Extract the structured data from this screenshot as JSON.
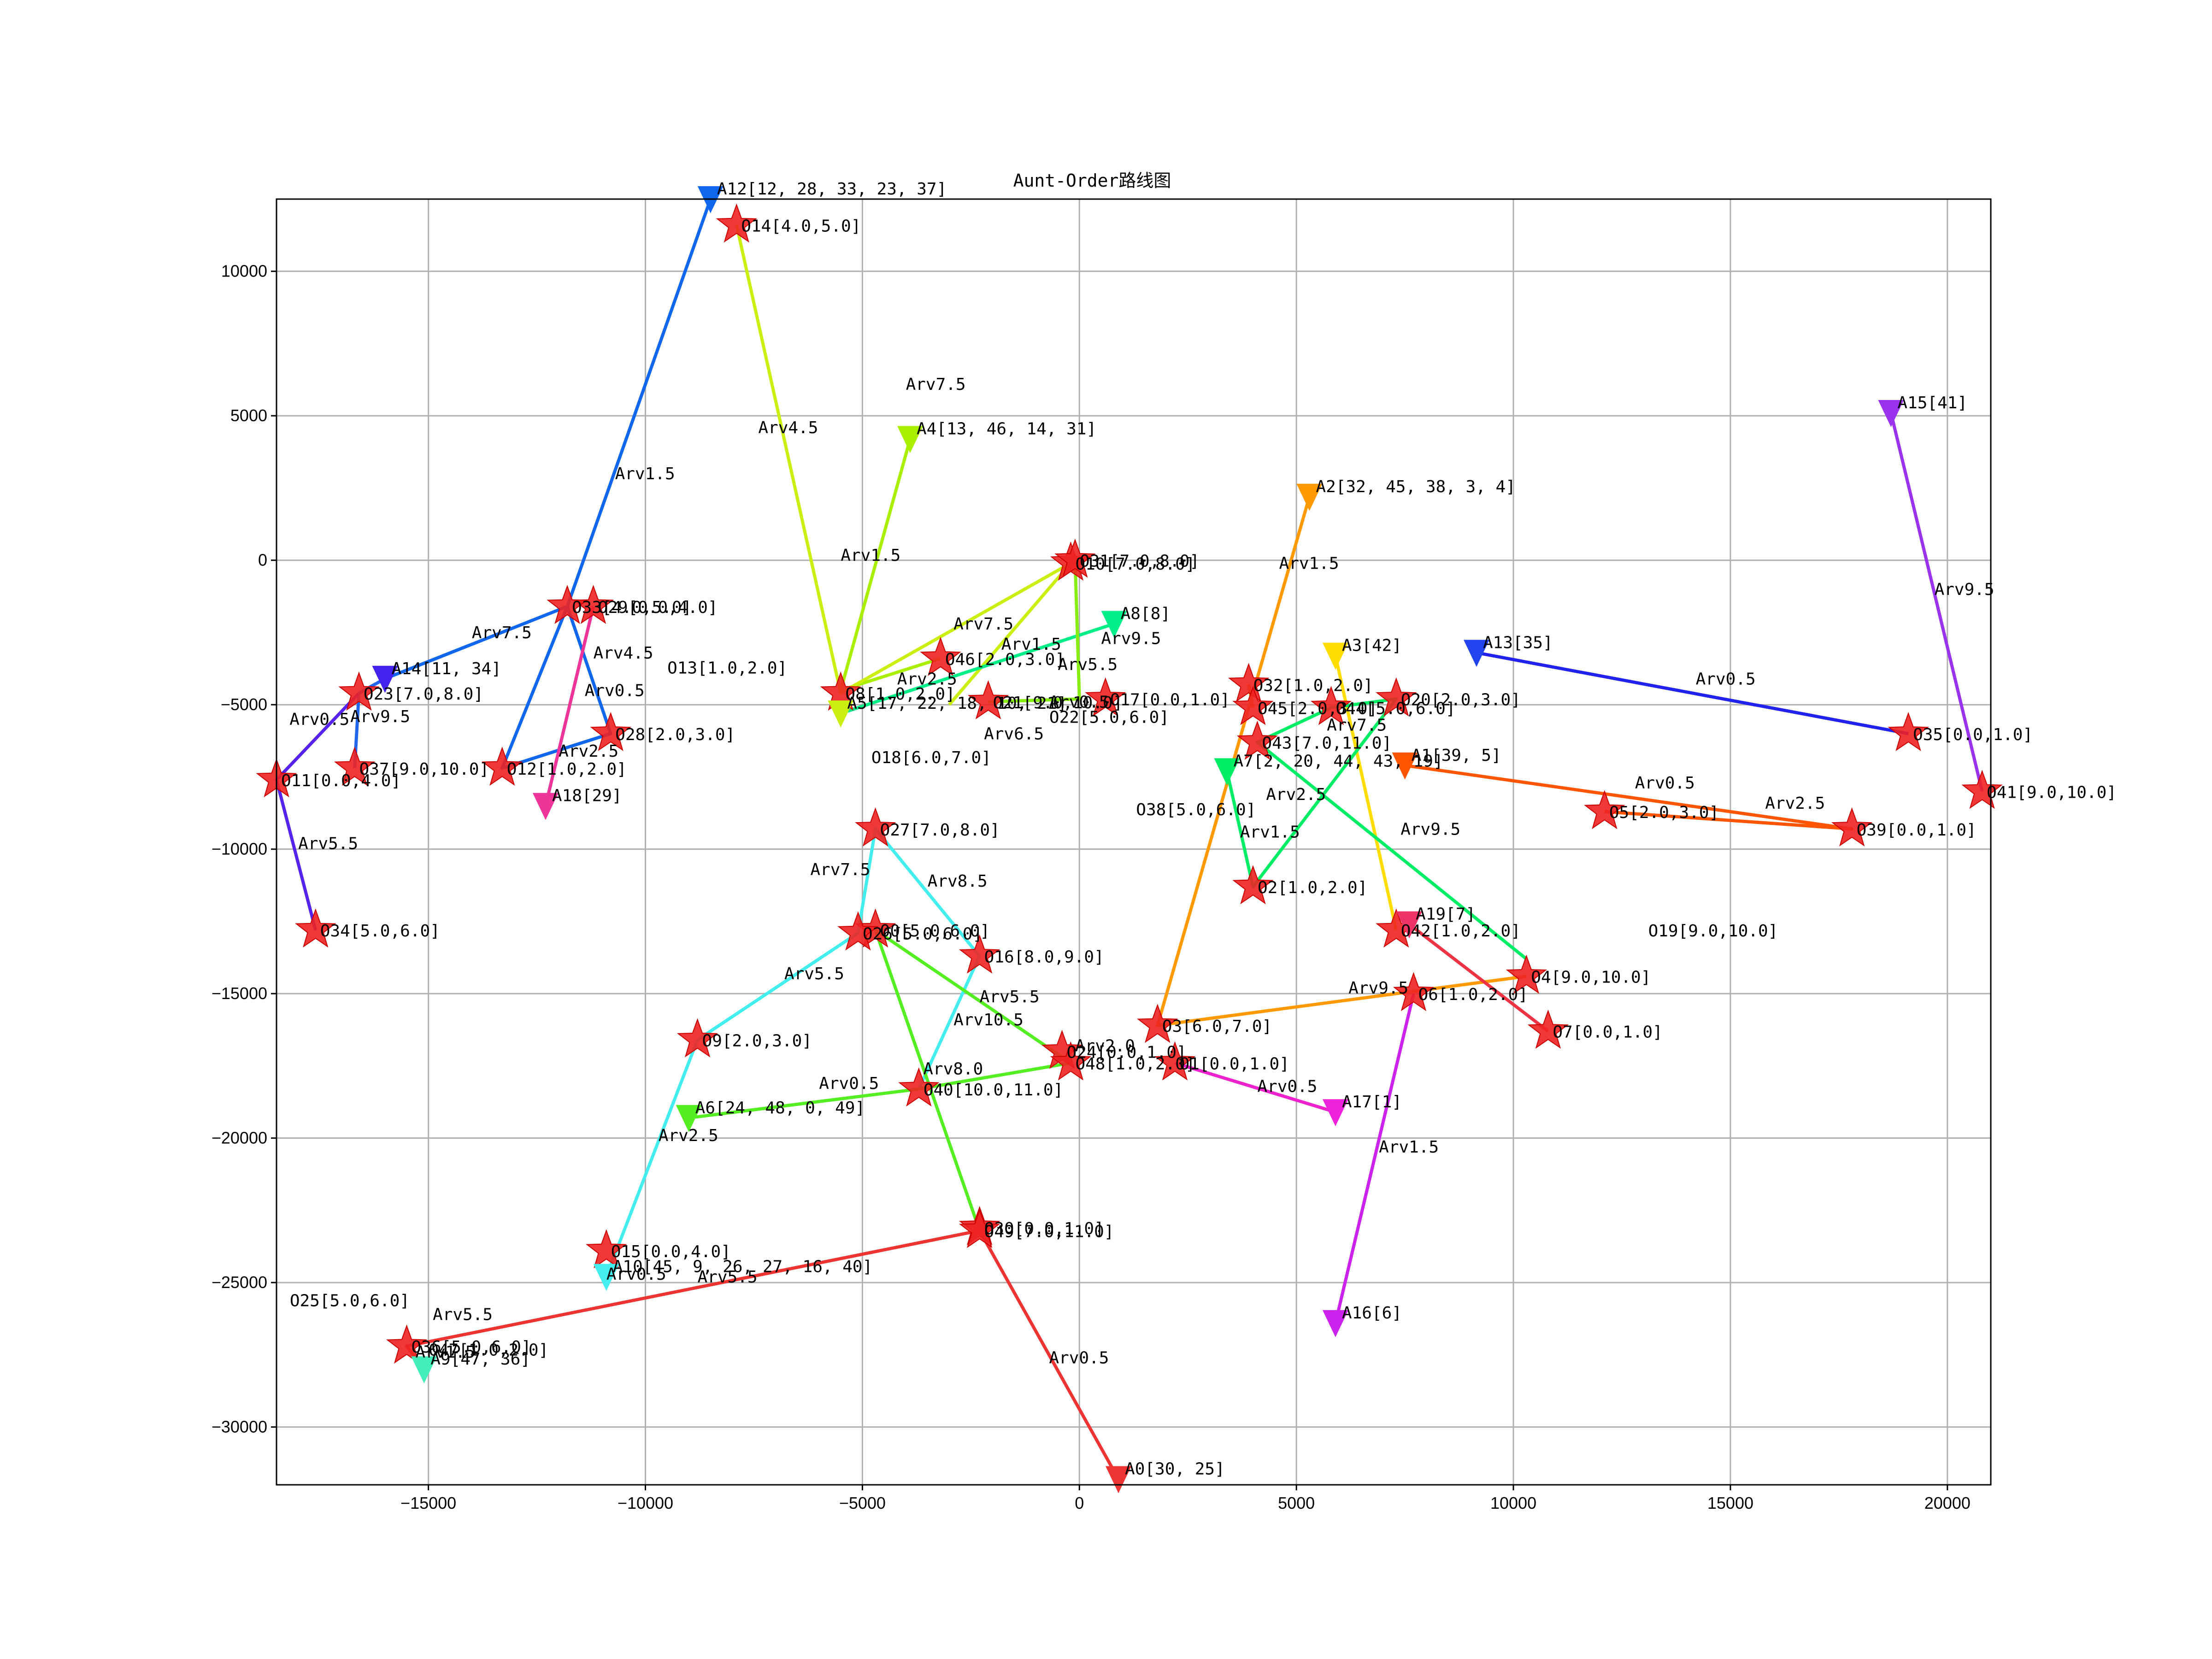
{
  "chart_data": {
    "type": "scatter",
    "title": "Aunt-Order路线图",
    "xlabel": "",
    "ylabel": "",
    "xlim": [
      -18500,
      21000
    ],
    "ylim": [
      -32000,
      12500
    ],
    "x_ticks": [
      -15000,
      -10000,
      -5000,
      0,
      5000,
      10000,
      15000,
      20000
    ],
    "x_tick_labels": [
      "−15000",
      "−10000",
      "−5000",
      "0",
      "5000",
      "10000",
      "15000",
      "20000"
    ],
    "y_ticks": [
      10000,
      5000,
      0,
      -5000,
      -10000,
      -15000,
      -20000,
      -25000,
      -30000
    ],
    "y_tick_labels": [
      "10000",
      "5000",
      "0",
      "−5000",
      "−10000",
      "−15000",
      "−20000",
      "−25000",
      "−30000"
    ],
    "grid": true,
    "routes": [
      {
        "color": "#2222ee",
        "points": [
          [
            9150,
            -3200
          ],
          [
            19100,
            -6000
          ]
        ],
        "arrivals": [
          {
            "text": "Arv0.5",
            "x": 14200,
            "y": -4300
          }
        ]
      },
      {
        "color": "#9933ee",
        "points": [
          [
            18700,
            5100
          ],
          [
            20800,
            -8000
          ]
        ],
        "arrivals": [
          {
            "text": "Arv9.5",
            "x": 19700,
            "y": -1200
          }
        ]
      },
      {
        "color": "#ff5500",
        "points": [
          [
            7500,
            -7100
          ],
          [
            17800,
            -9300
          ],
          [
            12100,
            -8700
          ]
        ],
        "arrivals": [
          {
            "text": "Arv0.5",
            "x": 12800,
            "y": -7900
          },
          {
            "text": "Arv2.5",
            "x": 15800,
            "y": -8600
          }
        ]
      },
      {
        "color": "#ff9900",
        "points": [
          [
            5300,
            2200
          ],
          [
            1800,
            -16100
          ],
          [
            10300,
            -14400
          ]
        ],
        "arrivals": [
          {
            "text": "Arv1.5",
            "x": 4600,
            "y": -300
          },
          {
            "text": "Arv9.5",
            "x": 6200,
            "y": -15000
          }
        ]
      },
      {
        "color": "#ffdd00",
        "points": [
          [
            5900,
            -3300
          ],
          [
            7300,
            -12800
          ]
        ],
        "arrivals": []
      },
      {
        "color": "#00ee66",
        "points": [
          [
            3400,
            -7300
          ],
          [
            4000,
            -11300
          ],
          [
            7300,
            -4800
          ],
          [
            5800,
            -5100
          ],
          [
            4100,
            -6300
          ],
          [
            10300,
            -13800
          ]
        ],
        "arrivals": [
          {
            "text": "Arv1.5",
            "x": 3700,
            "y": -9600
          },
          {
            "text": "Arv7.5",
            "x": 5700,
            "y": -5900
          },
          {
            "text": "Arv2.5",
            "x": 4300,
            "y": -8300
          },
          {
            "text": "Arv9.5",
            "x": 7400,
            "y": -9500
          }
        ]
      },
      {
        "color": "#ff9900",
        "points": [
          [
            4000,
            -5100
          ],
          [
            3900,
            -4300
          ]
        ],
        "arrivals": []
      },
      {
        "color": "#cc22ee",
        "points": [
          [
            5900,
            -26400
          ],
          [
            7700,
            -15000
          ]
        ],
        "arrivals": [
          {
            "text": "Arv1.5",
            "x": 6900,
            "y": -20500
          }
        ]
      },
      {
        "color": "#ee3344",
        "points": [
          [
            7600,
            -12600
          ],
          [
            10800,
            -16300
          ]
        ],
        "arrivals": []
      },
      {
        "color": "#ee22cc",
        "points": [
          [
            5900,
            -19100
          ],
          [
            2200,
            -17400
          ]
        ],
        "arrivals": [
          {
            "text": "Arv0.5",
            "x": 4100,
            "y": -18400
          }
        ]
      },
      {
        "color": "#aaee00",
        "points": [
          [
            -3900,
            4200
          ],
          [
            -5500,
            -4500
          ],
          [
            -3200,
            -3400
          ]
        ],
        "arrivals": [
          {
            "text": "Arv1.5",
            "x": -5500,
            "y": -20
          },
          {
            "text": "Arv7.5",
            "x": -2900,
            "y": -2400
          }
        ]
      },
      {
        "color": "#ccee11",
        "points": [
          [
            -7900,
            11600
          ],
          [
            -5500,
            -4600
          ],
          [
            -200,
            -100
          ],
          [
            -3000,
            -5000
          ]
        ],
        "arrivals": [
          {
            "text": "Arv4.5",
            "x": -7400,
            "y": 4400
          },
          {
            "text": "Arv7.5",
            "x": -4000,
            "y": 5900
          },
          {
            "text": "Arv2.5",
            "x": -4200,
            "y": -4300
          }
        ]
      },
      {
        "color": "#00ee88",
        "points": [
          [
            800,
            -2200
          ],
          [
            -5500,
            -5300
          ]
        ],
        "arrivals": [
          {
            "text": "Arv9.5",
            "x": 500,
            "y": -2900
          }
        ]
      },
      {
        "color": "#88ee11",
        "points": [
          [
            -2100,
            -4900
          ],
          [
            0,
            -4800
          ],
          [
            -100,
            0
          ]
        ],
        "arrivals": [
          {
            "text": "Arv1.5",
            "x": -1800,
            "y": -3100
          },
          {
            "text": "Arv5.5",
            "x": -500,
            "y": -3800
          },
          {
            "text": "Arv0.5",
            "x": -700,
            "y": -5100
          },
          {
            "text": "Arv6.5",
            "x": -2200,
            "y": -6200
          }
        ]
      },
      {
        "color": "#1166ee",
        "points": [
          [
            -8500,
            12500
          ],
          [
            -11800,
            -1600
          ],
          [
            -16000,
            -4100
          ]
        ],
        "arrivals": [
          {
            "text": "Arv1.5",
            "x": -10700,
            "y": 2800
          },
          {
            "text": "Arv7.5",
            "x": -14000,
            "y": -2700
          }
        ]
      },
      {
        "color": "#1166ee",
        "points": [
          [
            -11800,
            -1600
          ],
          [
            -10800,
            -6000
          ],
          [
            -13300,
            -7200
          ],
          [
            -11800,
            -1600
          ]
        ],
        "arrivals": [
          {
            "text": "Arv2.5",
            "x": -12000,
            "y": -6800
          }
        ]
      },
      {
        "color": "#2266ee",
        "points": [
          [
            -16000,
            -4100
          ],
          [
            -16600,
            -4600
          ],
          [
            -16700,
            -7200
          ]
        ],
        "arrivals": [
          {
            "text": "Arv9.5",
            "x": -16800,
            "y": -5600
          }
        ]
      },
      {
        "color": "#5522ee",
        "points": [
          [
            -16600,
            -4600
          ],
          [
            -18500,
            -7600
          ],
          [
            -17600,
            -12800
          ]
        ],
        "arrivals": [
          {
            "text": "Arv0.5",
            "x": -18200,
            "y": -5700
          },
          {
            "text": "Arv5.5",
            "x": -18000,
            "y": -10000
          }
        ]
      },
      {
        "color": "#ee3399",
        "points": [
          [
            -12300,
            -8500
          ],
          [
            -11200,
            -1600
          ]
        ],
        "arrivals": [
          {
            "text": "Arv4.5",
            "x": -11200,
            "y": -3400
          },
          {
            "text": "Arv0.5",
            "x": -11400,
            "y": -4700
          }
        ]
      },
      {
        "color": "#44eeee",
        "points": [
          [
            -10900,
            -24800
          ],
          [
            -8800,
            -16600
          ],
          [
            -5100,
            -12900
          ],
          [
            -4700,
            -9300
          ],
          [
            -2300,
            -13700
          ],
          [
            -3700,
            -18300
          ]
        ],
        "arrivals": [
          {
            "text": "Arv0.5",
            "x": -10900,
            "y": -24900
          },
          {
            "text": "Arv2.5",
            "x": -9700,
            "y": -20100
          },
          {
            "text": "Arv5.5",
            "x": -6800,
            "y": -14500
          },
          {
            "text": "Arv7.5",
            "x": -6200,
            "y": -10900
          },
          {
            "text": "Arv8.5",
            "x": -3500,
            "y": -11300
          },
          {
            "text": "Arv10.5",
            "x": -2900,
            "y": -16100
          }
        ]
      },
      {
        "color": "#55ee22",
        "points": [
          [
            -9000,
            -19300
          ],
          [
            -3700,
            -18300
          ],
          [
            -200,
            -17400
          ],
          [
            -4700,
            -12800
          ],
          [
            -2300,
            -23200
          ]
        ],
        "arrivals": [
          {
            "text": "Arv0.5",
            "x": -6000,
            "y": -18300
          },
          {
            "text": "Arv8.0",
            "x": -3600,
            "y": -17800
          },
          {
            "text": "Arv2.0",
            "x": -100,
            "y": -17000
          },
          {
            "text": "Arv5.5",
            "x": -2300,
            "y": -15300
          }
        ]
      },
      {
        "color": "#ee3333",
        "points": [
          [
            900,
            -31800
          ],
          [
            -2300,
            -23200
          ],
          [
            -15500,
            -27200
          ],
          [
            -15100,
            -28000
          ]
        ],
        "arrivals": [
          {
            "text": "Arv0.5",
            "x": -700,
            "y": -27800
          },
          {
            "text": "Arv5.5",
            "x": -8800,
            "y": -25000
          },
          {
            "text": "Arv5.5",
            "x": -14900,
            "y": -26300
          },
          {
            "text": "Arv1.5",
            "x": -15300,
            "y": -27600
          }
        ]
      }
    ],
    "aunts": [
      {
        "label": "A0[30, 25]",
        "x": 900,
        "y": -31800,
        "color": "#ee3333"
      },
      {
        "label": "A1[39, 5]",
        "x": 7500,
        "y": -7100,
        "color": "#ff5500"
      },
      {
        "label": "A2[32, 45, 38, 3, 4]",
        "x": 5300,
        "y": 2200,
        "color": "#ff9900"
      },
      {
        "label": "A3[42]",
        "x": 5900,
        "y": -3300,
        "color": "#ffdd00"
      },
      {
        "label": "A4[13, 46, 14, 31]",
        "x": -3900,
        "y": 4200,
        "color": "#aaee00"
      },
      {
        "label": "A5[17, 22, 18, 10, 21]",
        "x": -5500,
        "y": -5300,
        "color": "#ccee11"
      },
      {
        "label": "A6[24, 48, 0, 49]",
        "x": -9000,
        "y": -19300,
        "color": "#55ee22"
      },
      {
        "label": "A7[2, 20, 44, 43, 19]",
        "x": 3400,
        "y": -7300,
        "color": "#00ee66"
      },
      {
        "label": "A8[8]",
        "x": 800,
        "y": -2200,
        "color": "#00ee88"
      },
      {
        "label": "A9[47, 36]",
        "x": -15100,
        "y": -28000,
        "color": "#44eebb"
      },
      {
        "label": "A10[45, 9, 26, 27, 16, 40]",
        "x": -10900,
        "y": -24800,
        "color": "#44eeee"
      },
      {
        "label": "A12[12, 28, 33, 23, 37]",
        "x": -8500,
        "y": 12500,
        "color": "#1166ee"
      },
      {
        "label": "A13[35]",
        "x": 9150,
        "y": -3200,
        "color": "#2244ee"
      },
      {
        "label": "A14[11, 34]",
        "x": -16000,
        "y": -4100,
        "color": "#4422ee"
      },
      {
        "label": "A15[41]",
        "x": 18700,
        "y": 5100,
        "color": "#9933ee"
      },
      {
        "label": "A16[6]",
        "x": 5900,
        "y": -26400,
        "color": "#cc22ee"
      },
      {
        "label": "A17[1]",
        "x": 5900,
        "y": -19100,
        "color": "#ee22dd"
      },
      {
        "label": "A18[29]",
        "x": -12300,
        "y": -8500,
        "color": "#ee3399"
      },
      {
        "label": "A19[7]",
        "x": 7600,
        "y": -12600,
        "color": "#ee3366"
      }
    ],
    "orders": [
      {
        "label": "O0[5.0,6.0]",
        "x": -4700,
        "y": -12800
      },
      {
        "label": "O1[0.0,1.0]",
        "x": 2200,
        "y": -17400
      },
      {
        "label": "O2[1.0,2.0]",
        "x": 4000,
        "y": -11300
      },
      {
        "label": "O3[6.0,7.0]",
        "x": 1800,
        "y": -16100
      },
      {
        "label": "O4[9.0,10.0]",
        "x": 10300,
        "y": -14400
      },
      {
        "label": "O5[2.0,3.0]",
        "x": 12100,
        "y": -8700
      },
      {
        "label": "O6[1.0,2.0]",
        "x": 7700,
        "y": -15000
      },
      {
        "label": "O7[0.0,1.0]",
        "x": 10800,
        "y": -16300
      },
      {
        "label": "O8[1.0,2.0]",
        "x": -5500,
        "y": -4600
      },
      {
        "label": "O9[2.0,3.0]",
        "x": -8800,
        "y": -16600
      },
      {
        "label": "O10[7.0,8.0]",
        "x": -200,
        "y": -100
      },
      {
        "label": "O11[0.0,4.0]",
        "x": -18500,
        "y": -7600
      },
      {
        "label": "O12[1.0,2.0]",
        "x": -13300,
        "y": -7200
      },
      {
        "label": "O13[1.0,2.0]",
        "x": -9600,
        "y": -3700,
        "noMark": true
      },
      {
        "label": "O14[4.0,5.0]",
        "x": -7900,
        "y": 11600
      },
      {
        "label": "O15[0.0,4.0]",
        "x": -10900,
        "y": -23900
      },
      {
        "label": "O16[8.0,9.0]",
        "x": -2300,
        "y": -13700
      },
      {
        "label": "O17[0.0,1.0]",
        "x": 600,
        "y": -4800
      },
      {
        "label": "O18[6.0,7.0]",
        "x": -4900,
        "y": -6800,
        "noMark": true
      },
      {
        "label": "O19[9.0,10.0]",
        "x": 13000,
        "y": -12800,
        "noMark": true
      },
      {
        "label": "O20[2.0,3.0]",
        "x": 7300,
        "y": -4800
      },
      {
        "label": "O21[9.0,10.0]",
        "x": -2100,
        "y": -4900
      },
      {
        "label": "O22[5.0,6.0]",
        "x": -800,
        "y": -5400,
        "noMark": true
      },
      {
        "label": "O23[7.0,8.0]",
        "x": -16600,
        "y": -4600
      },
      {
        "label": "O24[0.0,1.0]",
        "x": -400,
        "y": -17000
      },
      {
        "label": "O25[5.0,6.0]",
        "x": -18300,
        "y": -25600,
        "noMark": true
      },
      {
        "label": "O26[5.0,6.0]",
        "x": -5100,
        "y": -12900
      },
      {
        "label": "O27[7.0,8.0]",
        "x": -4700,
        "y": -9300
      },
      {
        "label": "O28[2.0,3.0]",
        "x": -10800,
        "y": -6000
      },
      {
        "label": "O29[0.0,4.0]",
        "x": -11200,
        "y": -1600
      },
      {
        "label": "O30[0.0,1.0]",
        "x": -2300,
        "y": -23100
      },
      {
        "label": "O31[7.0,8.0]",
        "x": -100,
        "y": 0
      },
      {
        "label": "O32[1.0,2.0]",
        "x": 3900,
        "y": -4300
      },
      {
        "label": "O33[4.0,5.0]",
        "x": -11800,
        "y": -1600
      },
      {
        "label": "O34[5.0,6.0]",
        "x": -17600,
        "y": -12800
      },
      {
        "label": "O35[0.0,1.0]",
        "x": 19100,
        "y": -6000
      },
      {
        "label": "O36[5.0,6.0]",
        "x": -15500,
        "y": -27200
      },
      {
        "label": "O37[9.0,10.0]",
        "x": -16700,
        "y": -7200
      },
      {
        "label": "O38[5.0,6.0]",
        "x": 1200,
        "y": -8600,
        "noMark": true
      },
      {
        "label": "O39[0.0,1.0]",
        "x": 17800,
        "y": -9300
      },
      {
        "label": "O40[10.0,11.0]",
        "x": -3700,
        "y": -18300
      },
      {
        "label": "O41[9.0,10.0]",
        "x": 20800,
        "y": -8000
      },
      {
        "label": "O42[1.0,2.0]",
        "x": 7300,
        "y": -12800
      },
      {
        "label": "O43[7.0,11.0]",
        "x": 4100,
        "y": -6300
      },
      {
        "label": "O44[5.0,6.0]",
        "x": 5800,
        "y": -5100
      },
      {
        "label": "O45[2.0,3.0]",
        "x": 4000,
        "y": -5100
      },
      {
        "label": "O46[2.0,3.0]",
        "x": -3200,
        "y": -3400
      },
      {
        "label": "O47[1.0,2.0]",
        "x": -15100,
        "y": -27300,
        "noMark": true
      },
      {
        "label": "O48[1.0,2.0]",
        "x": -200,
        "y": -17400
      },
      {
        "label": "O49[7.0,11.0]",
        "x": -2300,
        "y": -23200
      }
    ]
  }
}
